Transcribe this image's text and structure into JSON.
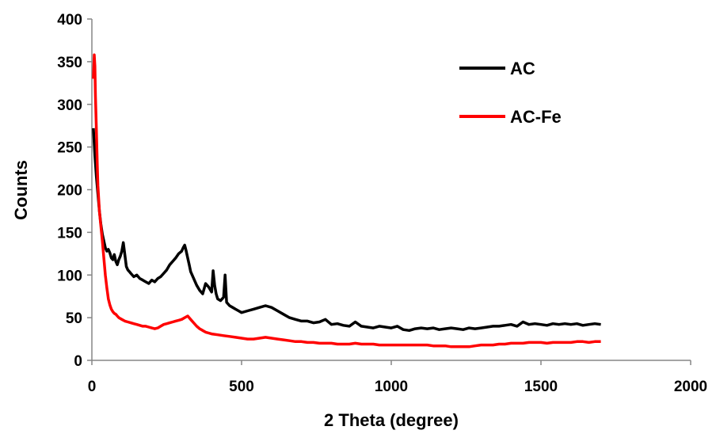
{
  "chart_data": {
    "type": "line",
    "title": "",
    "xlabel": "2 Theta (degree)",
    "ylabel": "Counts",
    "xlim": [
      0,
      2000
    ],
    "ylim": [
      0,
      400
    ],
    "xticks": [
      "0",
      "500",
      "1000",
      "1500",
      "2000"
    ],
    "yticks": [
      "0",
      "50",
      "100",
      "150",
      "200",
      "250",
      "300",
      "350",
      "400"
    ],
    "grid": false,
    "legend_position": "top-right",
    "series": [
      {
        "name": "AC",
        "color": "#000000",
        "x": [
          5,
          10,
          15,
          20,
          25,
          30,
          35,
          40,
          45,
          50,
          55,
          60,
          65,
          70,
          75,
          80,
          85,
          90,
          95,
          100,
          105,
          110,
          115,
          120,
          125,
          130,
          140,
          150,
          160,
          170,
          180,
          190,
          200,
          210,
          220,
          230,
          240,
          250,
          260,
          270,
          280,
          290,
          300,
          305,
          310,
          315,
          320,
          325,
          330,
          340,
          350,
          360,
          370,
          380,
          390,
          400,
          405,
          410,
          415,
          420,
          430,
          440,
          445,
          450,
          460,
          470,
          480,
          490,
          500,
          520,
          540,
          560,
          580,
          600,
          620,
          640,
          660,
          680,
          700,
          720,
          740,
          760,
          780,
          800,
          820,
          840,
          860,
          880,
          900,
          920,
          940,
          960,
          980,
          1000,
          1020,
          1040,
          1060,
          1080,
          1100,
          1120,
          1140,
          1160,
          1180,
          1200,
          1220,
          1240,
          1260,
          1280,
          1300,
          1320,
          1340,
          1360,
          1380,
          1400,
          1420,
          1440,
          1460,
          1480,
          1500,
          1520,
          1540,
          1560,
          1580,
          1600,
          1620,
          1640,
          1660,
          1680,
          1700
        ],
        "y": [
          272,
          240,
          215,
          195,
          175,
          160,
          148,
          140,
          132,
          128,
          130,
          126,
          120,
          118,
          124,
          116,
          112,
          118,
          122,
          128,
          138,
          124,
          110,
          106,
          104,
          102,
          98,
          100,
          96,
          94,
          92,
          90,
          94,
          92,
          96,
          98,
          102,
          106,
          112,
          116,
          120,
          125,
          128,
          132,
          135,
          128,
          120,
          112,
          104,
          96,
          88,
          82,
          78,
          90,
          86,
          80,
          105,
          88,
          78,
          72,
          70,
          74,
          100,
          68,
          64,
          62,
          60,
          58,
          56,
          58,
          60,
          62,
          64,
          62,
          58,
          54,
          50,
          48,
          46,
          46,
          44,
          45,
          48,
          42,
          43,
          41,
          40,
          45,
          40,
          39,
          38,
          40,
          39,
          38,
          40,
          36,
          35,
          37,
          38,
          37,
          38,
          36,
          37,
          38,
          37,
          36,
          38,
          37,
          38,
          39,
          40,
          40,
          41,
          42,
          40,
          45,
          42,
          43,
          42,
          41,
          43,
          42,
          43,
          42,
          43,
          41,
          42,
          43,
          42
        ]
      },
      {
        "name": "AC-Fe",
        "color": "#ff0000",
        "x": [
          5,
          8,
          10,
          12,
          15,
          18,
          20,
          25,
          30,
          35,
          40,
          45,
          50,
          55,
          60,
          65,
          70,
          75,
          80,
          85,
          90,
          100,
          110,
          120,
          130,
          140,
          150,
          160,
          170,
          180,
          190,
          200,
          210,
          220,
          230,
          240,
          250,
          260,
          270,
          280,
          290,
          300,
          310,
          320,
          330,
          340,
          350,
          360,
          370,
          380,
          390,
          400,
          420,
          440,
          460,
          480,
          500,
          520,
          540,
          560,
          580,
          600,
          620,
          640,
          660,
          680,
          700,
          720,
          740,
          760,
          780,
          800,
          820,
          840,
          860,
          880,
          900,
          920,
          940,
          960,
          980,
          1000,
          1020,
          1040,
          1060,
          1080,
          1100,
          1120,
          1140,
          1160,
          1180,
          1200,
          1220,
          1240,
          1260,
          1280,
          1300,
          1320,
          1340,
          1360,
          1380,
          1400,
          1420,
          1440,
          1460,
          1480,
          1500,
          1520,
          1540,
          1560,
          1580,
          1600,
          1620,
          1640,
          1660,
          1680,
          1700
        ],
        "y": [
          330,
          358,
          345,
          310,
          270,
          230,
          205,
          175,
          158,
          140,
          120,
          100,
          85,
          72,
          65,
          60,
          57,
          55,
          54,
          52,
          50,
          48,
          46,
          45,
          44,
          43,
          42,
          41,
          40,
          40,
          39,
          38,
          37,
          38,
          40,
          42,
          43,
          44,
          45,
          46,
          47,
          48,
          50,
          52,
          48,
          44,
          40,
          37,
          35,
          33,
          32,
          31,
          30,
          29,
          28,
          27,
          26,
          25,
          25,
          26,
          27,
          26,
          25,
          24,
          23,
          22,
          22,
          21,
          21,
          20,
          20,
          20,
          19,
          19,
          19,
          20,
          19,
          19,
          19,
          18,
          18,
          18,
          18,
          18,
          18,
          18,
          18,
          18,
          17,
          17,
          17,
          16,
          16,
          16,
          16,
          17,
          18,
          18,
          18,
          19,
          19,
          20,
          20,
          20,
          21,
          21,
          21,
          20,
          21,
          21,
          21,
          21,
          22,
          22,
          21,
          22,
          22
        ]
      }
    ]
  }
}
